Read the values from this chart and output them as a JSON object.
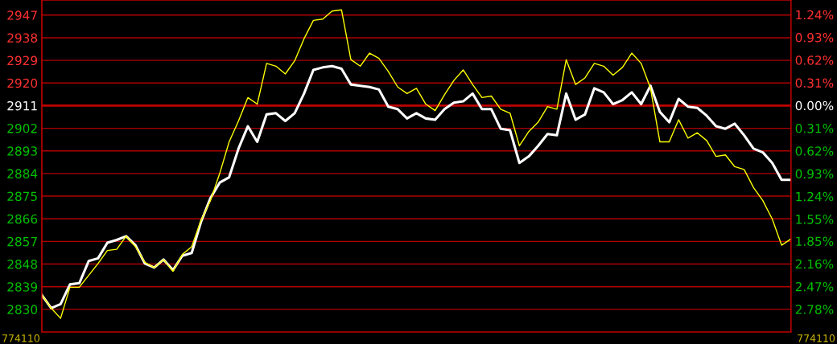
{
  "chart_data": {
    "type": "line",
    "categories": [
      null,
      null,
      null,
      null,
      null,
      null,
      null,
      null,
      null,
      null,
      null,
      null,
      null,
      null,
      null,
      null,
      null,
      null,
      null,
      null,
      null,
      null,
      null,
      null,
      null,
      null,
      null,
      null,
      null,
      null,
      null,
      null,
      null,
      null,
      null,
      null,
      null,
      null,
      null,
      null,
      null,
      null,
      null,
      null,
      null,
      null,
      null,
      null,
      null,
      null,
      null,
      null,
      null,
      null,
      null,
      null,
      null,
      null,
      null,
      null,
      null,
      null,
      null,
      null,
      null,
      null,
      null,
      null,
      null,
      null,
      null,
      null,
      null,
      null,
      null,
      null,
      null,
      null,
      null,
      null,
      null
    ],
    "ylim": [
      2821,
      2953
    ],
    "yticks": [
      2830,
      2839,
      2848,
      2857,
      2866,
      2875,
      2884,
      2893,
      2902,
      2911,
      2920,
      2929,
      2938,
      2947
    ],
    "y2lim": [
      -3.09,
      1.44
    ],
    "y2ticks": [
      {
        "value": -2.78,
        "label": "2.78%"
      },
      {
        "value": -2.47,
        "label": "2.47%"
      },
      {
        "value": -2.16,
        "label": "2.16%"
      },
      {
        "value": -1.85,
        "label": "1.85%"
      },
      {
        "value": -1.55,
        "label": "1.55%"
      },
      {
        "value": -1.24,
        "label": "1.24%"
      },
      {
        "value": -0.93,
        "label": "0.93%"
      },
      {
        "value": -0.62,
        "label": "0.62%"
      },
      {
        "value": -0.31,
        "label": "0.31%"
      },
      {
        "value": 0,
        "label": "0.00%"
      },
      {
        "value": 0.31,
        "label": "0.31%"
      },
      {
        "value": 0.62,
        "label": "0.62%"
      },
      {
        "value": 0.93,
        "label": "0.93%"
      },
      {
        "value": 1.24,
        "label": "1.24%"
      }
    ],
    "tick_labels": "y",
    "grid": "y",
    "ref_lines": [
      {
        "axis": "y",
        "value": 2911,
        "color": "#c00000"
      }
    ],
    "annotations": [
      "774110",
      "774110"
    ],
    "series": [
      {
        "color": "#ffffff",
        "values": [
          2835.7,
          2830.5,
          2832.1,
          2839.9,
          2840.4,
          2849.2,
          2850.3,
          2856.5,
          2857.6,
          2859.1,
          2855.5,
          2848.2,
          2846.6,
          2849.8,
          2845.6,
          2851.3,
          2852.4,
          2864.8,
          2874.2,
          2880.4,
          2882.5,
          2893.9,
          2902.8,
          2896.6,
          2907.5,
          2908.0,
          2904.9,
          2908.0,
          2915.8,
          2925.2,
          2926.2,
          2926.7,
          2925.7,
          2919.4,
          2918.9,
          2918.4,
          2917.4,
          2910.6,
          2909.6,
          2905.9,
          2908.0,
          2905.9,
          2905.4,
          2909.6,
          2912.2,
          2912.7,
          2915.8,
          2909.6,
          2909.6,
          2901.8,
          2901.2,
          2888.2,
          2890.8,
          2895.0,
          2899.7,
          2899.2,
          2915.8,
          2905.4,
          2907.5,
          2917.9,
          2916.3,
          2911.6,
          2913.2,
          2916.3,
          2911.6,
          2918.9,
          2908.5,
          2904.4,
          2913.7,
          2910.6,
          2910.1,
          2907.0,
          2902.8,
          2901.8,
          2903.8,
          2899.2,
          2893.9,
          2892.4,
          2888.2,
          2881.5,
          2881.5
        ]
      },
      {
        "color": "#ffff00",
        "values": [
          2835.7,
          2830.5,
          2826.4,
          2838.8,
          2838.8,
          2843.5,
          2848.2,
          2853.4,
          2853.9,
          2859.1,
          2854.9,
          2848.7,
          2846.6,
          2849.8,
          2845.1,
          2851.8,
          2854.9,
          2865.4,
          2873.2,
          2884.1,
          2896.6,
          2904.9,
          2914.2,
          2911.6,
          2927.8,
          2926.7,
          2923.6,
          2928.8,
          2937.6,
          2944.9,
          2945.4,
          2948.6,
          2949.1,
          2929.3,
          2926.7,
          2931.9,
          2929.8,
          2924.6,
          2918.4,
          2915.8,
          2917.9,
          2911.6,
          2909.0,
          2915.3,
          2921.0,
          2925.2,
          2919.4,
          2914.2,
          2914.8,
          2909.6,
          2908.0,
          2895.0,
          2900.7,
          2904.4,
          2910.6,
          2909.6,
          2929.3,
          2919.4,
          2922.0,
          2927.8,
          2926.7,
          2923.1,
          2926.2,
          2931.9,
          2927.8,
          2917.9,
          2896.6,
          2896.6,
          2905.4,
          2898.1,
          2900.2,
          2897.1,
          2890.8,
          2891.4,
          2886.7,
          2885.6,
          2878.4,
          2873.2,
          2865.9,
          2855.5,
          2858.0
        ]
      }
    ]
  }
}
